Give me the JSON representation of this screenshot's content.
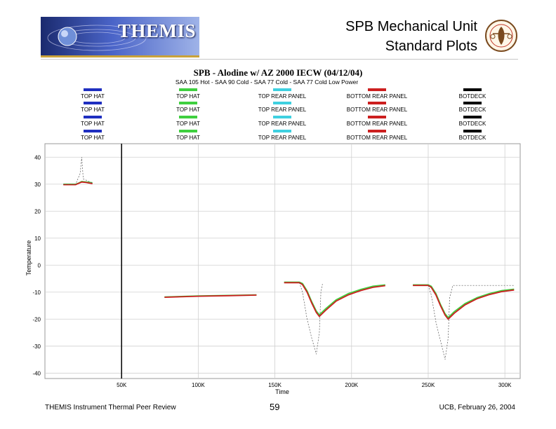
{
  "header": {
    "logo_text": "THEMIS",
    "title_line1": "SPB Mechanical Unit",
    "title_line2": "Standard Plots"
  },
  "footer": {
    "left": "THEMIS Instrument Thermal Peer Review",
    "page_number": "59",
    "right": "UCB, February 26, 2004"
  },
  "colors": {
    "blue": "#1f2fc0",
    "green": "#3fcf3f",
    "cyan": "#3fd0e0",
    "red": "#cc1f1f",
    "black": "#000000"
  },
  "chart_data": {
    "type": "line",
    "title": "SPB - Alodine w/ AZ 2000 IECW (04/12/04)",
    "subtitle": "SAA 105 Hot - SAA 90 Cold - SAA 77 Cold - SAA 77 Cold Low Power",
    "xlabel": "Time",
    "ylabel": "Temperature",
    "xlim": [
      0,
      310000
    ],
    "ylim": [
      -42,
      45
    ],
    "xticks": [
      50000,
      100000,
      150000,
      200000,
      250000,
      300000
    ],
    "xtick_labels": [
      "50K",
      "100K",
      "150K",
      "200K",
      "250K",
      "300K"
    ],
    "yticks": [
      40,
      30,
      20,
      10,
      0,
      -10,
      -20,
      -30,
      -40
    ],
    "ytick_labels": [
      "40",
      "30",
      "20",
      "10",
      "0",
      "-10",
      "-20",
      "-30",
      "-40"
    ],
    "grid": true,
    "legend_position": "top",
    "legend": [
      [
        "TOP HAT",
        "TOP HAT",
        "TOP REAR PANEL",
        "BOTTOM REAR PANEL",
        "BOTDECK"
      ],
      [
        "TOP HAT",
        "TOP HAT",
        "TOP REAR PANEL",
        "BOTTOM REAR PANEL",
        "BOTDECK"
      ],
      [
        "TOP HAT",
        "TOP HAT",
        "TOP REAR PANEL",
        "BOTTOM REAR PANEL",
        "BOTDECK"
      ],
      [
        "TOP HAT",
        "TOP HAT",
        "TOP REAR PANEL",
        "BOTTOM REAR PANEL",
        "BOTDECK"
      ]
    ],
    "legend_colors": [
      "blue",
      "green",
      "cyan",
      "red",
      "black"
    ],
    "series": [
      {
        "color": "green",
        "x": [
          12000,
          20000,
          22000,
          24000,
          27000,
          31000
        ],
        "y": [
          30,
          30,
          30.4,
          31,
          30.8,
          30.5
        ]
      },
      {
        "color": "red",
        "x": [
          12000,
          20000,
          22000,
          24000,
          27000,
          31000
        ],
        "y": [
          29.8,
          29.8,
          30.3,
          30.8,
          30.6,
          30.2
        ]
      },
      {
        "color": "black",
        "x": [
          12000,
          20000,
          23000,
          24000,
          25000,
          31000
        ],
        "y": [
          30,
          30,
          34,
          40,
          32,
          30.4
        ]
      },
      {
        "color": "green",
        "x": [
          78000,
          100000,
          120000,
          138000
        ],
        "y": [
          -11.8,
          -11.4,
          -11.2,
          -11
        ]
      },
      {
        "color": "red",
        "x": [
          78000,
          100000,
          120000,
          138000
        ],
        "y": [
          -11.9,
          -11.5,
          -11.3,
          -11.1
        ]
      },
      {
        "color": "green",
        "x": [
          156000,
          166000,
          168000,
          171000,
          174000,
          177000,
          179000,
          183000,
          190000,
          198000,
          206000,
          214000,
          222000
        ],
        "y": [
          -6.3,
          -6.3,
          -6.8,
          -9.5,
          -13.5,
          -17,
          -18.4,
          -16.2,
          -12.8,
          -10.5,
          -9.0,
          -7.8,
          -7.3
        ]
      },
      {
        "color": "red",
        "x": [
          156000,
          166000,
          168000,
          171000,
          174000,
          177000,
          179000,
          183000,
          190000,
          198000,
          206000,
          214000,
          222000
        ],
        "y": [
          -6.5,
          -6.5,
          -7.2,
          -10,
          -14,
          -17.5,
          -19,
          -16.8,
          -13.3,
          -11,
          -9.4,
          -8.2,
          -7.6
        ]
      },
      {
        "color": "black",
        "x": [
          166000,
          168000,
          171000,
          174000,
          177000,
          179000,
          180000,
          181000
        ],
        "y": [
          -6.5,
          -10,
          -20,
          -27,
          -33,
          -25,
          -10,
          -7
        ]
      },
      {
        "color": "green",
        "x": [
          240000,
          250000,
          252000,
          255000,
          258000,
          261000,
          263000,
          267000,
          274000,
          282000,
          290000,
          298000,
          306000
        ],
        "y": [
          -7.3,
          -7.3,
          -7.8,
          -10.5,
          -14.5,
          -18,
          -19.4,
          -17.2,
          -14.2,
          -12,
          -10.5,
          -9.4,
          -8.9
        ]
      },
      {
        "color": "red",
        "x": [
          240000,
          250000,
          252000,
          255000,
          258000,
          261000,
          263000,
          267000,
          274000,
          282000,
          290000,
          298000,
          306000
        ],
        "y": [
          -7.5,
          -7.5,
          -8.2,
          -11,
          -15,
          -18.5,
          -20,
          -17.8,
          -14.7,
          -12.4,
          -10.9,
          -9.8,
          -9.2
        ]
      },
      {
        "color": "black",
        "x": [
          250000,
          252000,
          255000,
          258000,
          261000,
          263000,
          264000,
          266000,
          306000
        ],
        "y": [
          -7.5,
          -11,
          -21,
          -28,
          -35,
          -27,
          -12,
          -7.5,
          -7.5
        ]
      }
    ]
  }
}
